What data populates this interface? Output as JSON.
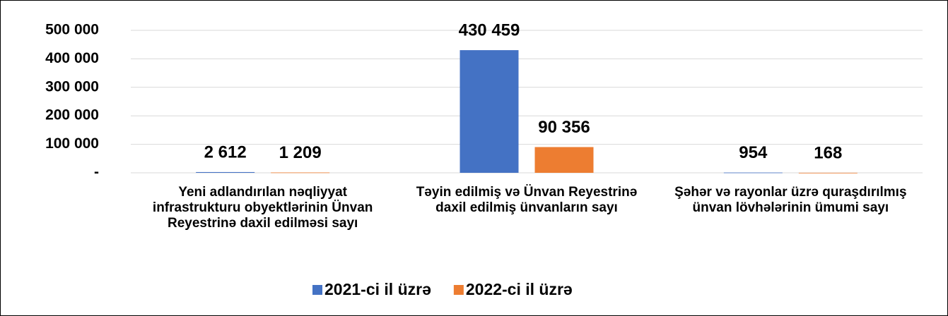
{
  "chart_data": {
    "type": "bar",
    "categories": [
      "Yeni adlandırılan nəqliyyat infrastrukturu obyektlərinin Ünvan Reyestrinə daxil edilməsi sayı",
      "Təyin edilmiş və Ünvan Reyestrinə daxil edilmiş ünvanların sayı",
      "Şəhər və rayonlar üzrə quraşdırılmış ünvan lövhələrinin ümumi sayı"
    ],
    "series": [
      {
        "name": "2021-ci il üzrə",
        "color": "#4472c4",
        "values": [
          2612,
          430459,
          954
        ],
        "value_labels": [
          "2 612",
          "430 459",
          "954"
        ]
      },
      {
        "name": "2022-ci il üzrə",
        "color": "#ed7d31",
        "values": [
          1209,
          90356,
          168
        ],
        "value_labels": [
          "1 209",
          "90 356",
          "168"
        ]
      }
    ],
    "ylim": [
      0,
      500000
    ],
    "yticks": [
      {
        "value": 0,
        "label": "-"
      },
      {
        "value": 100000,
        "label": "100 000"
      },
      {
        "value": 200000,
        "label": "200 000"
      },
      {
        "value": 300000,
        "label": "300 000"
      },
      {
        "value": 400000,
        "label": "400 000"
      },
      {
        "value": 500000,
        "label": "500 000"
      }
    ],
    "grid": true,
    "legend": "bottom"
  }
}
